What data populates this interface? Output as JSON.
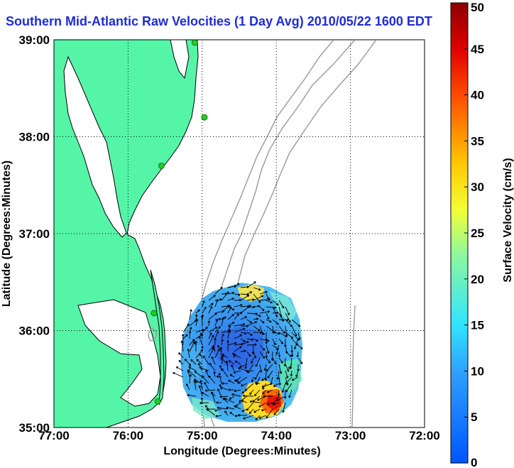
{
  "title": "Southern Mid-Atlantic Raw Velocities (1 Day Avg) 2010/05/22 1600 EDT",
  "map": {
    "xlabel": "Longitude (Degrees:Minutes)",
    "ylabel": "Latitude (Degrees:Minutes)",
    "x_ticks": [
      "77:00",
      "76:00",
      "75:00",
      "74:00",
      "73:00",
      "72:00"
    ],
    "y_ticks": [
      "39:00",
      "38:00",
      "37:00",
      "36:00",
      "35:00"
    ],
    "lon_range": [
      -77,
      -72
    ],
    "lat_range": [
      35,
      39
    ],
    "land_color": "#55f5a8",
    "ocean_color": "#ffffff",
    "grid": true,
    "grid_style": "dotted",
    "stations": [
      {
        "lon": -75.1,
        "lat": 38.97
      },
      {
        "lon": -74.97,
        "lat": 38.2
      },
      {
        "lon": -75.55,
        "lat": 37.7
      },
      {
        "lon": -75.65,
        "lat": 36.18
      },
      {
        "lon": -75.6,
        "lat": 35.27
      }
    ],
    "station_color": "#22cc22"
  },
  "colorbar": {
    "label": "Surface Velocity (cm/s)",
    "min": 0,
    "max": 50,
    "ticks": [
      "0",
      "5",
      "10",
      "15",
      "20",
      "25",
      "30",
      "35",
      "40",
      "45",
      "50"
    ]
  },
  "chart_data": {
    "type": "heatmap",
    "title": "Southern Mid-Atlantic Raw Velocities (1 Day Avg) 2010/05/22 1600 EDT",
    "xlabel": "Longitude (Degrees:Minutes)",
    "ylabel": "Latitude (Degrees:Minutes)",
    "xlim": [
      -77,
      -72
    ],
    "ylim": [
      35,
      39
    ],
    "colorbar_range": [
      0,
      50
    ],
    "colorbar_label": "Surface Velocity (cm/s)",
    "velocity_field_extent": {
      "lon": [
        -75.3,
        -73.7
      ],
      "lat": [
        35.1,
        36.6
      ]
    },
    "velocity_regions_cm_s": [
      {
        "lon": -74.7,
        "lat": 35.9,
        "speed": 3
      },
      {
        "lon": -74.9,
        "lat": 36.2,
        "speed": 8
      },
      {
        "lon": -75.1,
        "lat": 35.6,
        "speed": 10
      },
      {
        "lon": -74.6,
        "lat": 36.35,
        "speed": 25
      },
      {
        "lon": -74.2,
        "lat": 36.3,
        "speed": 12
      },
      {
        "lon": -73.9,
        "lat": 35.8,
        "speed": 14
      },
      {
        "lon": -74.05,
        "lat": 35.35,
        "speed": 42
      },
      {
        "lon": -74.3,
        "lat": 35.3,
        "speed": 20
      },
      {
        "lon": -74.6,
        "lat": 35.2,
        "speed": 22
      },
      {
        "lon": -74.95,
        "lat": 35.3,
        "speed": 12
      }
    ]
  }
}
